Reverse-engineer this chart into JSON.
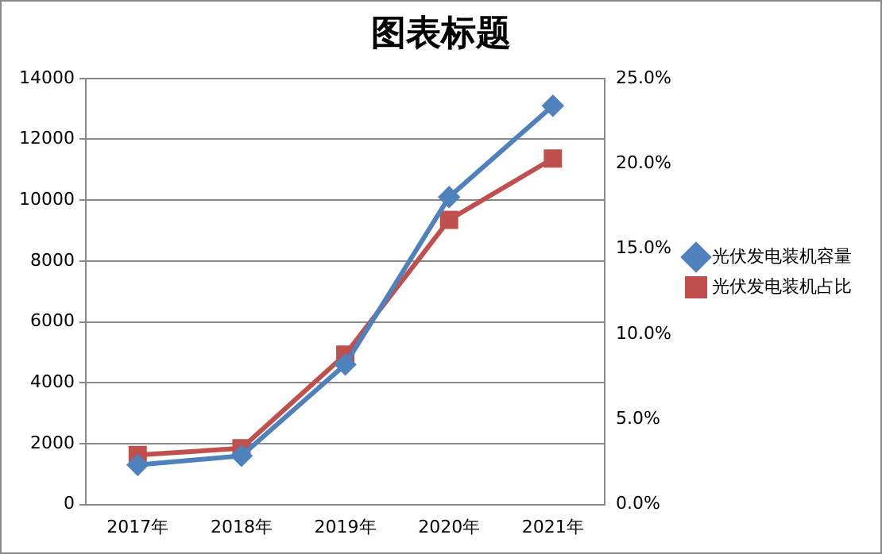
{
  "chart_data": {
    "type": "line",
    "title": "图表标题",
    "categories": [
      "2017年",
      "2018年",
      "2019年",
      "2020年",
      "2021年"
    ],
    "series": [
      {
        "name": "光伏发电装机容量",
        "color": "#4f81bd",
        "values": [
          1300,
          1600,
          4600,
          10100,
          13100
        ],
        "marker": "diamond"
      },
      {
        "name": "光伏发电装机占比",
        "color": "#c0504d",
        "values": [
          2.9,
          3.3,
          8.8,
          16.7,
          20.3
        ],
        "marker": "square",
        "axis": "y2"
      }
    ],
    "ylim": [
      0,
      14000
    ],
    "yticks": [
      0,
      2000,
      4000,
      6000,
      8000,
      10000,
      12000,
      14000
    ],
    "y2lim": [
      0,
      25
    ],
    "y2ticks": [
      {
        "value": 0,
        "label": "0.0%"
      },
      {
        "value": 5,
        "label": "5.0%"
      },
      {
        "value": 10,
        "label": "10.0%"
      },
      {
        "value": 15,
        "label": "15.0%"
      },
      {
        "value": 20,
        "label": "20.0%"
      },
      {
        "value": 25,
        "label": "25.0%"
      }
    ],
    "grid": "y",
    "legend": "right"
  }
}
